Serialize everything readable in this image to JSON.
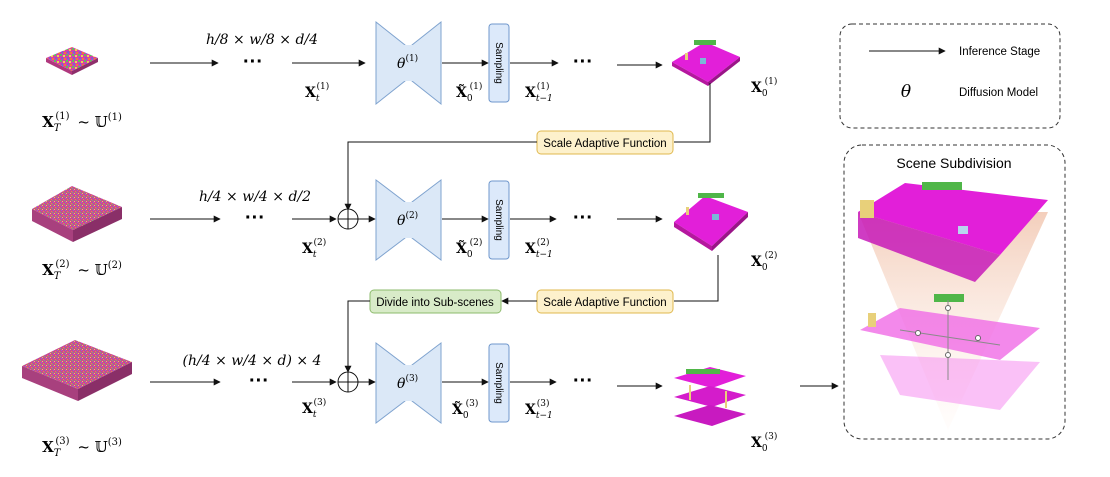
{
  "legend": {
    "arrow_label": "Inference Stage",
    "theta_symbol": "θ",
    "theta_label": "Diffusion Model"
  },
  "boxes": {
    "scale_adaptive_1": "Scale Adaptive Function",
    "scale_adaptive_2": "Scale Adaptive Function",
    "divide": "Divide into Sub-scenes",
    "sampling": "Sampling"
  },
  "scene_subdivision": {
    "title": "Scene Subdivision"
  },
  "dots": "···",
  "colors": {
    "unet_fill": "#dbe8f7",
    "unet_stroke": "#7fa3cf",
    "sampling_fill": "#dce9fa",
    "sampling_stroke": "#6f97cc",
    "yellow_fill": "#fdf1cc",
    "yellow_stroke": "#e0b84e",
    "green_fill": "#d8ebc8",
    "green_stroke": "#8dbb6c",
    "magenta": "#e21fd9"
  },
  "rows": [
    {
      "noise_label": "X_T^(1) ~ U^(1)",
      "dims": "h/8 × w/8 × d/4",
      "xt": "X_t^(1)",
      "theta": "θ^(1)",
      "x0hat": "X̃_0^(1)",
      "xtm1": "X_{t−1}^(1)",
      "x0": "X_0^(1)"
    },
    {
      "noise_label": "X_T^(2) ~ U^(2)",
      "dims": "h/4 × w/4 × d/2",
      "xt": "X_t^(2)",
      "theta": "θ^(2)",
      "x0hat": "X̃_0^(2)",
      "xtm1": "X_{t−1}^(2)",
      "x0": "X_0^(2)"
    },
    {
      "noise_label": "X_T^(3) ~ U^(3)",
      "dims": "(h/4 × w/4 × d) × 4",
      "xt": "X_t^(3)",
      "theta": "θ^(3)",
      "x0hat": "X̃_0^(3)",
      "xtm1": "X_{t−1}^(3)",
      "x0": "X_0^(3)"
    }
  ]
}
